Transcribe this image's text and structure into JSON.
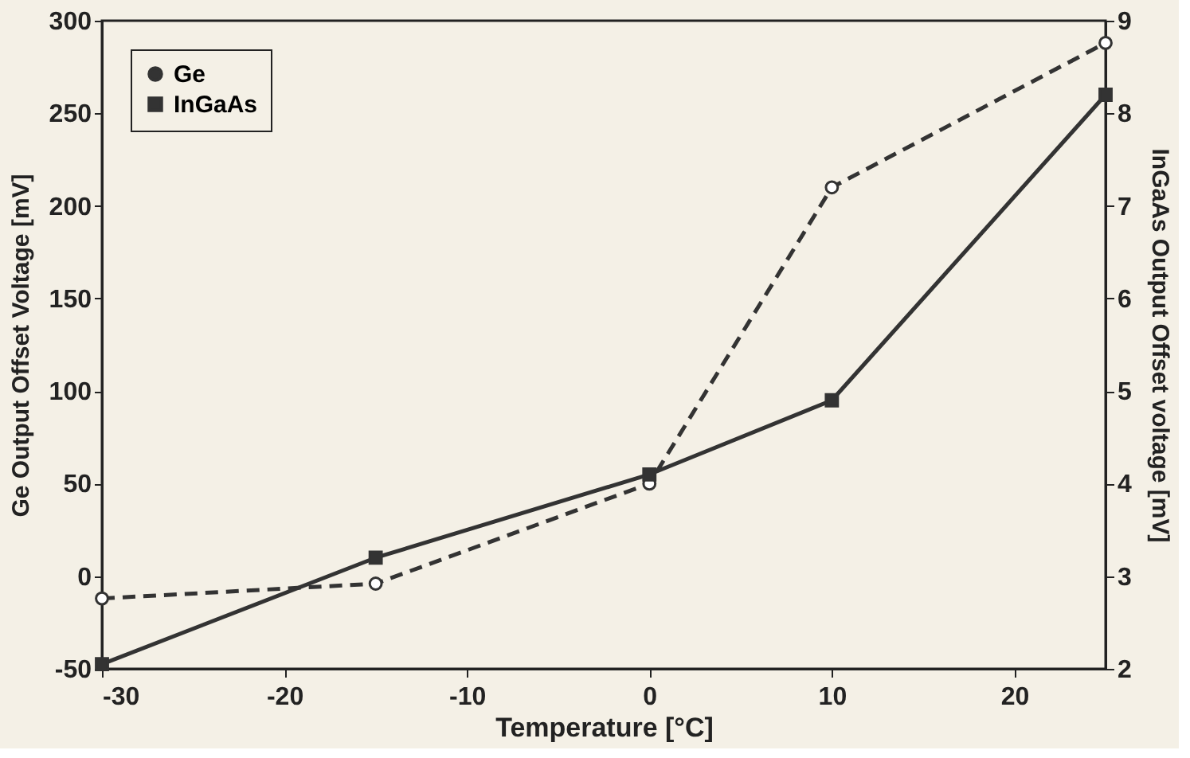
{
  "chart_data": {
    "type": "line",
    "xlabel": "Temperature [°C]",
    "ylabel": "Ge Output Offset Voltage [mV]",
    "y2label": "InGaAs Output Offset voltage [mV]",
    "x": [
      -30,
      -15,
      0,
      10,
      25
    ],
    "xlim": [
      -30,
      25
    ],
    "xticks": [
      -30,
      -20,
      -10,
      0,
      10,
      20
    ],
    "ylim": [
      -50,
      300
    ],
    "yticks": [
      -50,
      0,
      50,
      100,
      150,
      200,
      250,
      300
    ],
    "y2lim": [
      2,
      9
    ],
    "y2ticks": [
      2,
      3,
      4,
      5,
      6,
      7,
      8,
      9
    ],
    "series": [
      {
        "name": "Ge",
        "color": "#333333",
        "values": [
          -12,
          -4,
          50,
          210,
          288
        ],
        "line_style": "dashed",
        "marker": "circle"
      },
      {
        "name": "InGaAs",
        "color": "#333333",
        "values": [
          2.05,
          3.2,
          4.1,
          4.9,
          8.2
        ],
        "line_style": "solid",
        "marker": "square",
        "axis": "y2"
      }
    ],
    "grid": false,
    "legend": "top left"
  }
}
